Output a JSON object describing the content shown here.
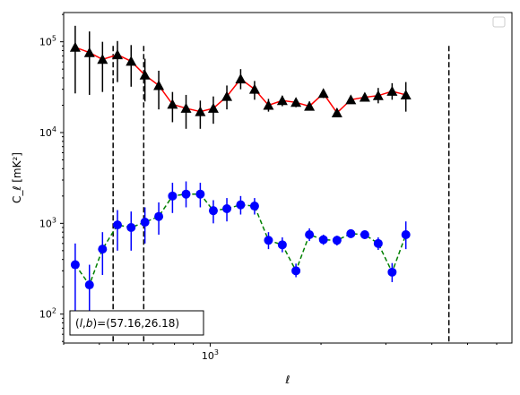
{
  "chart_data": {
    "type": "scatter",
    "title": "",
    "xlabel": "ℓ",
    "ylabel": "C_ℓ [mK²]",
    "xscale": "log",
    "yscale": "log",
    "xlim": [
      400,
      6600
    ],
    "ylim": [
      48,
      210000
    ],
    "grid": false,
    "legend": "top-right",
    "legend_entries": [],
    "x_tick_label": {
      "base": "10",
      "exp": "3",
      "value": 1000
    },
    "y_tick_labels": [
      {
        "value": 100,
        "base": "10",
        "exp": "2"
      },
      {
        "value": 1000,
        "base": "10",
        "exp": "3"
      },
      {
        "value": 10000,
        "base": "10",
        "exp": "4"
      },
      {
        "value": 100000,
        "base": "10",
        "exp": "5"
      }
    ],
    "vertical_lines": [
      {
        "x": 545,
        "style": "dashed",
        "color": "#000000"
      },
      {
        "x": 660,
        "style": "dashed",
        "color": "#000000"
      },
      {
        "x": 4450,
        "style": "dashed",
        "color": "#000000"
      }
    ],
    "annotation": {
      "lead": "(",
      "l": "l",
      "sep": ",",
      "b": "b",
      "tail": ")=(57.16,26.18)"
    },
    "series": [
      {
        "marker": "triangle",
        "marker_color": "#000000",
        "line_color": "#ff0000",
        "line_style": "solid",
        "errorbar_color": "#000000",
        "points": [
          {
            "x": 430,
            "y": 87000,
            "lo": 27000,
            "hi": 150000
          },
          {
            "x": 470,
            "y": 76000,
            "lo": 26000,
            "hi": 130000
          },
          {
            "x": 510,
            "y": 64000,
            "lo": 28000,
            "hi": 100000
          },
          {
            "x": 560,
            "y": 72000,
            "lo": 36000,
            "hi": 102000
          },
          {
            "x": 610,
            "y": 61000,
            "lo": 32000,
            "hi": 92000
          },
          {
            "x": 665,
            "y": 43000,
            "lo": 22000,
            "hi": 65000
          },
          {
            "x": 725,
            "y": 33000,
            "lo": 18000,
            "hi": 48000
          },
          {
            "x": 790,
            "y": 20500,
            "lo": 13000,
            "hi": 28000
          },
          {
            "x": 860,
            "y": 18500,
            "lo": 11000,
            "hi": 26000
          },
          {
            "x": 940,
            "y": 17000,
            "lo": 11000,
            "hi": 22500
          },
          {
            "x": 1020,
            "y": 18500,
            "lo": 12500,
            "hi": 25000
          },
          {
            "x": 1110,
            "y": 25000,
            "lo": 18000,
            "hi": 33000
          },
          {
            "x": 1210,
            "y": 39000,
            "lo": 30000,
            "hi": 50000
          },
          {
            "x": 1320,
            "y": 30000,
            "lo": 23000,
            "hi": 37000
          },
          {
            "x": 1440,
            "y": 20000,
            "lo": 17000,
            "hi": 23500
          },
          {
            "x": 1570,
            "y": 22500,
            "lo": 19500,
            "hi": 25500
          },
          {
            "x": 1710,
            "y": 21500,
            "lo": 19000,
            "hi": 24000
          },
          {
            "x": 1860,
            "y": 19500,
            "lo": 17500,
            "hi": 22000
          },
          {
            "x": 2030,
            "y": 27000,
            "lo": 24000,
            "hi": 30000
          },
          {
            "x": 2210,
            "y": 16500,
            "lo": 15000,
            "hi": 18500
          },
          {
            "x": 2410,
            "y": 23000,
            "lo": 21000,
            "hi": 25500
          },
          {
            "x": 2630,
            "y": 24500,
            "lo": 22500,
            "hi": 27000
          },
          {
            "x": 2860,
            "y": 25500,
            "lo": 21000,
            "hi": 31000
          },
          {
            "x": 3120,
            "y": 28500,
            "lo": 23000,
            "hi": 35000
          },
          {
            "x": 3400,
            "y": 26000,
            "lo": 17000,
            "hi": 36000
          }
        ]
      },
      {
        "marker": "circle",
        "marker_color": "#0000ff",
        "line_color": "#008000",
        "line_style": "dashed",
        "errorbar_color": "#0000ff",
        "points": [
          {
            "x": 430,
            "y": 350,
            "lo": 100,
            "hi": 600
          },
          {
            "x": 470,
            "y": 210,
            "lo": 85,
            "hi": 350
          },
          {
            "x": 510,
            "y": 520,
            "lo": 270,
            "hi": 800
          },
          {
            "x": 560,
            "y": 960,
            "lo": 500,
            "hi": 1400
          },
          {
            "x": 610,
            "y": 900,
            "lo": 500,
            "hi": 1350
          },
          {
            "x": 665,
            "y": 1030,
            "lo": 600,
            "hi": 1500
          },
          {
            "x": 725,
            "y": 1190,
            "lo": 750,
            "hi": 1700
          },
          {
            "x": 790,
            "y": 2000,
            "lo": 1300,
            "hi": 2800
          },
          {
            "x": 860,
            "y": 2100,
            "lo": 1500,
            "hi": 2900
          },
          {
            "x": 940,
            "y": 2100,
            "lo": 1500,
            "hi": 2800
          },
          {
            "x": 1020,
            "y": 1380,
            "lo": 1000,
            "hi": 1800
          },
          {
            "x": 1110,
            "y": 1450,
            "lo": 1050,
            "hi": 1900
          },
          {
            "x": 1210,
            "y": 1600,
            "lo": 1250,
            "hi": 2000
          },
          {
            "x": 1320,
            "y": 1550,
            "lo": 1250,
            "hi": 1900
          },
          {
            "x": 1440,
            "y": 650,
            "lo": 520,
            "hi": 800
          },
          {
            "x": 1570,
            "y": 580,
            "lo": 480,
            "hi": 700
          },
          {
            "x": 1710,
            "y": 300,
            "lo": 255,
            "hi": 360
          },
          {
            "x": 1860,
            "y": 750,
            "lo": 640,
            "hi": 880
          },
          {
            "x": 2030,
            "y": 660,
            "lo": 580,
            "hi": 750
          },
          {
            "x": 2210,
            "y": 650,
            "lo": 570,
            "hi": 730
          },
          {
            "x": 2410,
            "y": 770,
            "lo": 690,
            "hi": 860
          },
          {
            "x": 2630,
            "y": 750,
            "lo": 680,
            "hi": 830
          },
          {
            "x": 2860,
            "y": 600,
            "lo": 510,
            "hi": 700
          },
          {
            "x": 3120,
            "y": 290,
            "lo": 225,
            "hi": 365
          },
          {
            "x": 3400,
            "y": 750,
            "lo": 520,
            "hi": 1050
          }
        ]
      }
    ]
  }
}
